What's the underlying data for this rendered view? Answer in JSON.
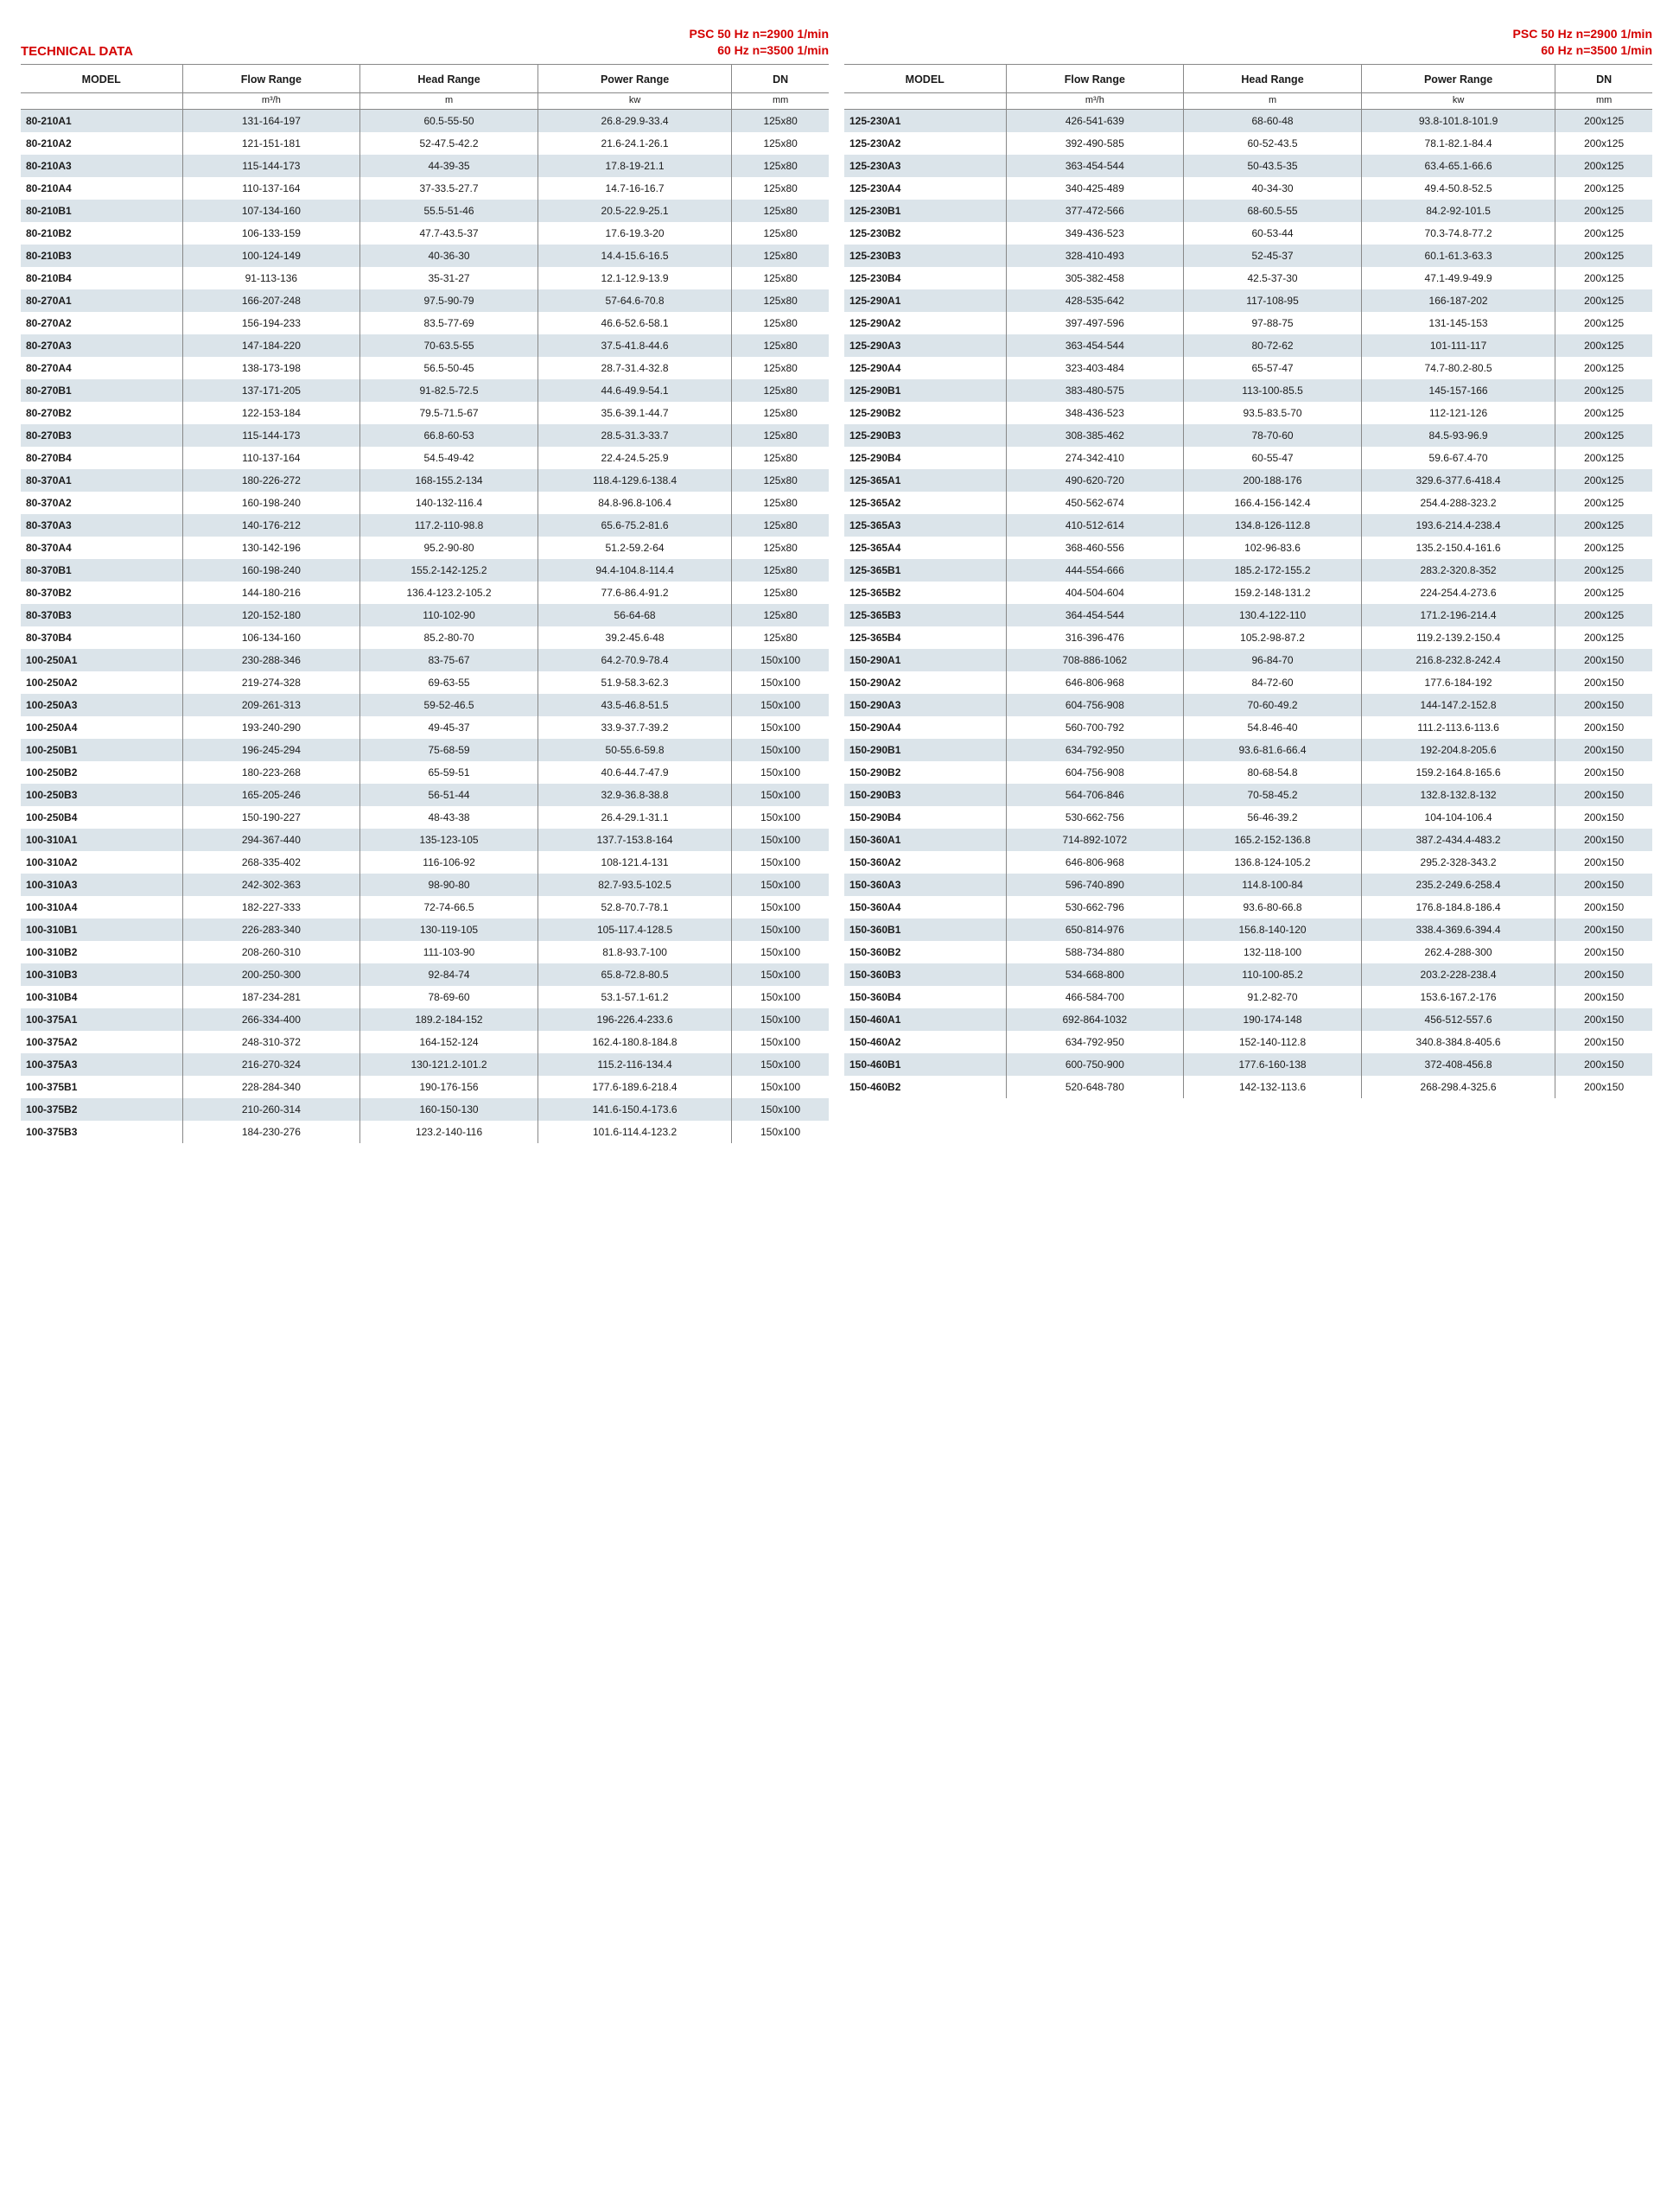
{
  "labels": {
    "technical_data": "TECHNICAL DATA",
    "psc_line1": "PSC  50 Hz  n=2900 1/min",
    "psc_line2": "60 Hz  n=3500 1/min"
  },
  "columns": [
    {
      "title": "MODEL",
      "unit": ""
    },
    {
      "title": "Flow Range",
      "unit": "m³/h"
    },
    {
      "title": "Head Range",
      "unit": "m"
    },
    {
      "title": "Power Range",
      "unit": "kw"
    },
    {
      "title": "DN",
      "unit": "mm"
    }
  ],
  "style": {
    "accent_color": "#d40000",
    "shade_row_color": "#dbe4ea",
    "border_color": "#888888",
    "font_family": "Arial, Helvetica, sans-serif",
    "header_fontsize_pt": 12.5,
    "body_fontsize_pt": 12
  },
  "left_rows": [
    {
      "model": "80-210A1",
      "flow": "131-164-197",
      "head": "60.5-55-50",
      "power": "26.8-29.9-33.4",
      "dn": "125x80",
      "shade": true
    },
    {
      "model": "80-210A2",
      "flow": "121-151-181",
      "head": "52-47.5-42.2",
      "power": "21.6-24.1-26.1",
      "dn": "125x80",
      "shade": false
    },
    {
      "model": "80-210A3",
      "flow": "115-144-173",
      "head": "44-39-35",
      "power": "17.8-19-21.1",
      "dn": "125x80",
      "shade": true
    },
    {
      "model": "80-210A4",
      "flow": "110-137-164",
      "head": "37-33.5-27.7",
      "power": "14.7-16-16.7",
      "dn": "125x80",
      "shade": false
    },
    {
      "model": "80-210B1",
      "flow": "107-134-160",
      "head": "55.5-51-46",
      "power": "20.5-22.9-25.1",
      "dn": "125x80",
      "shade": true
    },
    {
      "model": "80-210B2",
      "flow": "106-133-159",
      "head": "47.7-43.5-37",
      "power": "17.6-19.3-20",
      "dn": "125x80",
      "shade": false
    },
    {
      "model": "80-210B3",
      "flow": "100-124-149",
      "head": "40-36-30",
      "power": "14.4-15.6-16.5",
      "dn": "125x80",
      "shade": true
    },
    {
      "model": "80-210B4",
      "flow": "91-113-136",
      "head": "35-31-27",
      "power": "12.1-12.9-13.9",
      "dn": "125x80",
      "shade": false
    },
    {
      "model": "80-270A1",
      "flow": "166-207-248",
      "head": "97.5-90-79",
      "power": "57-64.6-70.8",
      "dn": "125x80",
      "shade": true
    },
    {
      "model": "80-270A2",
      "flow": "156-194-233",
      "head": "83.5-77-69",
      "power": "46.6-52.6-58.1",
      "dn": "125x80",
      "shade": false
    },
    {
      "model": "80-270A3",
      "flow": "147-184-220",
      "head": "70-63.5-55",
      "power": "37.5-41.8-44.6",
      "dn": "125x80",
      "shade": true
    },
    {
      "model": "80-270A4",
      "flow": "138-173-198",
      "head": "56.5-50-45",
      "power": "28.7-31.4-32.8",
      "dn": "125x80",
      "shade": false
    },
    {
      "model": "80-270B1",
      "flow": "137-171-205",
      "head": "91-82.5-72.5",
      "power": "44.6-49.9-54.1",
      "dn": "125x80",
      "shade": true
    },
    {
      "model": "80-270B2",
      "flow": "122-153-184",
      "head": "79.5-71.5-67",
      "power": "35.6-39.1-44.7",
      "dn": "125x80",
      "shade": false
    },
    {
      "model": "80-270B3",
      "flow": "115-144-173",
      "head": "66.8-60-53",
      "power": "28.5-31.3-33.7",
      "dn": "125x80",
      "shade": true
    },
    {
      "model": "80-270B4",
      "flow": "110-137-164",
      "head": "54.5-49-42",
      "power": "22.4-24.5-25.9",
      "dn": "125x80",
      "shade": false
    },
    {
      "model": "80-370A1",
      "flow": "180-226-272",
      "head": "168-155.2-134",
      "power": "118.4-129.6-138.4",
      "dn": "125x80",
      "shade": true
    },
    {
      "model": "80-370A2",
      "flow": "160-198-240",
      "head": "140-132-116.4",
      "power": "84.8-96.8-106.4",
      "dn": "125x80",
      "shade": false
    },
    {
      "model": "80-370A3",
      "flow": "140-176-212",
      "head": "117.2-110-98.8",
      "power": "65.6-75.2-81.6",
      "dn": "125x80",
      "shade": true
    },
    {
      "model": "80-370A4",
      "flow": "130-142-196",
      "head": "95.2-90-80",
      "power": "51.2-59.2-64",
      "dn": "125x80",
      "shade": false
    },
    {
      "model": "80-370B1",
      "flow": "160-198-240",
      "head": "155.2-142-125.2",
      "power": "94.4-104.8-114.4",
      "dn": "125x80",
      "shade": true
    },
    {
      "model": "80-370B2",
      "flow": "144-180-216",
      "head": "136.4-123.2-105.2",
      "power": "77.6-86.4-91.2",
      "dn": "125x80",
      "shade": false
    },
    {
      "model": "80-370B3",
      "flow": "120-152-180",
      "head": "110-102-90",
      "power": "56-64-68",
      "dn": "125x80",
      "shade": true
    },
    {
      "model": "80-370B4",
      "flow": "106-134-160",
      "head": "85.2-80-70",
      "power": "39.2-45.6-48",
      "dn": "125x80",
      "shade": false
    },
    {
      "model": "100-250A1",
      "flow": "230-288-346",
      "head": "83-75-67",
      "power": "64.2-70.9-78.4",
      "dn": "150x100",
      "shade": true
    },
    {
      "model": "100-250A2",
      "flow": "219-274-328",
      "head": "69-63-55",
      "power": "51.9-58.3-62.3",
      "dn": "150x100",
      "shade": false
    },
    {
      "model": "100-250A3",
      "flow": "209-261-313",
      "head": "59-52-46.5",
      "power": "43.5-46.8-51.5",
      "dn": "150x100",
      "shade": true
    },
    {
      "model": "100-250A4",
      "flow": "193-240-290",
      "head": "49-45-37",
      "power": "33.9-37.7-39.2",
      "dn": "150x100",
      "shade": false
    },
    {
      "model": "100-250B1",
      "flow": "196-245-294",
      "head": "75-68-59",
      "power": "50-55.6-59.8",
      "dn": "150x100",
      "shade": true
    },
    {
      "model": "100-250B2",
      "flow": "180-223-268",
      "head": "65-59-51",
      "power": "40.6-44.7-47.9",
      "dn": "150x100",
      "shade": false
    },
    {
      "model": "100-250B3",
      "flow": "165-205-246",
      "head": "56-51-44",
      "power": "32.9-36.8-38.8",
      "dn": "150x100",
      "shade": true
    },
    {
      "model": "100-250B4",
      "flow": "150-190-227",
      "head": "48-43-38",
      "power": "26.4-29.1-31.1",
      "dn": "150x100",
      "shade": false
    },
    {
      "model": "100-310A1",
      "flow": "294-367-440",
      "head": "135-123-105",
      "power": "137.7-153.8-164",
      "dn": "150x100",
      "shade": true
    },
    {
      "model": "100-310A2",
      "flow": "268-335-402",
      "head": "116-106-92",
      "power": "108-121.4-131",
      "dn": "150x100",
      "shade": false
    },
    {
      "model": "100-310A3",
      "flow": "242-302-363",
      "head": "98-90-80",
      "power": "82.7-93.5-102.5",
      "dn": "150x100",
      "shade": true
    },
    {
      "model": "100-310A4",
      "flow": "182-227-333",
      "head": "72-74-66.5",
      "power": "52.8-70.7-78.1",
      "dn": "150x100",
      "shade": false
    },
    {
      "model": "100-310B1",
      "flow": "226-283-340",
      "head": "130-119-105",
      "power": "105-117.4-128.5",
      "dn": "150x100",
      "shade": true
    },
    {
      "model": "100-310B2",
      "flow": "208-260-310",
      "head": "111-103-90",
      "power": "81.8-93.7-100",
      "dn": "150x100",
      "shade": false
    },
    {
      "model": "100-310B3",
      "flow": "200-250-300",
      "head": "92-84-74",
      "power": "65.8-72.8-80.5",
      "dn": "150x100",
      "shade": true
    },
    {
      "model": "100-310B4",
      "flow": "187-234-281",
      "head": "78-69-60",
      "power": "53.1-57.1-61.2",
      "dn": "150x100",
      "shade": false
    },
    {
      "model": "100-375A1",
      "flow": "266-334-400",
      "head": "189.2-184-152",
      "power": "196-226.4-233.6",
      "dn": "150x100",
      "shade": true
    },
    {
      "model": "100-375A2",
      "flow": "248-310-372",
      "head": "164-152-124",
      "power": "162.4-180.8-184.8",
      "dn": "150x100",
      "shade": false
    },
    {
      "model": "100-375A3",
      "flow": "216-270-324",
      "head": "130-121.2-101.2",
      "power": "115.2-116-134.4",
      "dn": "150x100",
      "shade": true
    },
    {
      "model": "100-375B1",
      "flow": "228-284-340",
      "head": "190-176-156",
      "power": "177.6-189.6-218.4",
      "dn": "150x100",
      "shade": false
    },
    {
      "model": "100-375B2",
      "flow": "210-260-314",
      "head": "160-150-130",
      "power": "141.6-150.4-173.6",
      "dn": "150x100",
      "shade": true
    },
    {
      "model": "100-375B3",
      "flow": "184-230-276",
      "head": "123.2-140-116",
      "power": "101.6-114.4-123.2",
      "dn": "150x100",
      "shade": false
    }
  ],
  "right_rows": [
    {
      "model": "125-230A1",
      "flow": "426-541-639",
      "head": "68-60-48",
      "power": "93.8-101.8-101.9",
      "dn": "200x125",
      "shade": true
    },
    {
      "model": "125-230A2",
      "flow": "392-490-585",
      "head": "60-52-43.5",
      "power": "78.1-82.1-84.4",
      "dn": "200x125",
      "shade": false
    },
    {
      "model": "125-230A3",
      "flow": "363-454-544",
      "head": "50-43.5-35",
      "power": "63.4-65.1-66.6",
      "dn": "200x125",
      "shade": true
    },
    {
      "model": "125-230A4",
      "flow": "340-425-489",
      "head": "40-34-30",
      "power": "49.4-50.8-52.5",
      "dn": "200x125",
      "shade": false
    },
    {
      "model": "125-230B1",
      "flow": "377-472-566",
      "head": "68-60.5-55",
      "power": "84.2-92-101.5",
      "dn": "200x125",
      "shade": true
    },
    {
      "model": "125-230B2",
      "flow": "349-436-523",
      "head": "60-53-44",
      "power": "70.3-74.8-77.2",
      "dn": "200x125",
      "shade": false
    },
    {
      "model": "125-230B3",
      "flow": "328-410-493",
      "head": "52-45-37",
      "power": "60.1-61.3-63.3",
      "dn": "200x125",
      "shade": true
    },
    {
      "model": "125-230B4",
      "flow": "305-382-458",
      "head": "42.5-37-30",
      "power": "47.1-49.9-49.9",
      "dn": "200x125",
      "shade": false
    },
    {
      "model": "125-290A1",
      "flow": "428-535-642",
      "head": "117-108-95",
      "power": "166-187-202",
      "dn": "200x125",
      "shade": true
    },
    {
      "model": "125-290A2",
      "flow": "397-497-596",
      "head": "97-88-75",
      "power": "131-145-153",
      "dn": "200x125",
      "shade": false
    },
    {
      "model": "125-290A3",
      "flow": "363-454-544",
      "head": "80-72-62",
      "power": "101-111-117",
      "dn": "200x125",
      "shade": true
    },
    {
      "model": "125-290A4",
      "flow": "323-403-484",
      "head": "65-57-47",
      "power": "74.7-80.2-80.5",
      "dn": "200x125",
      "shade": false
    },
    {
      "model": "125-290B1",
      "flow": "383-480-575",
      "head": "113-100-85.5",
      "power": "145-157-166",
      "dn": "200x125",
      "shade": true
    },
    {
      "model": "125-290B2",
      "flow": "348-436-523",
      "head": "93.5-83.5-70",
      "power": "112-121-126",
      "dn": "200x125",
      "shade": false
    },
    {
      "model": "125-290B3",
      "flow": "308-385-462",
      "head": "78-70-60",
      "power": "84.5-93-96.9",
      "dn": "200x125",
      "shade": true
    },
    {
      "model": "125-290B4",
      "flow": "274-342-410",
      "head": "60-55-47",
      "power": "59.6-67.4-70",
      "dn": "200x125",
      "shade": false
    },
    {
      "model": "125-365A1",
      "flow": "490-620-720",
      "head": "200-188-176",
      "power": "329.6-377.6-418.4",
      "dn": "200x125",
      "shade": true
    },
    {
      "model": "125-365A2",
      "flow": "450-562-674",
      "head": "166.4-156-142.4",
      "power": "254.4-288-323.2",
      "dn": "200x125",
      "shade": false
    },
    {
      "model": "125-365A3",
      "flow": "410-512-614",
      "head": "134.8-126-112.8",
      "power": "193.6-214.4-238.4",
      "dn": "200x125",
      "shade": true
    },
    {
      "model": "125-365A4",
      "flow": "368-460-556",
      "head": "102-96-83.6",
      "power": "135.2-150.4-161.6",
      "dn": "200x125",
      "shade": false
    },
    {
      "model": "125-365B1",
      "flow": "444-554-666",
      "head": "185.2-172-155.2",
      "power": "283.2-320.8-352",
      "dn": "200x125",
      "shade": true
    },
    {
      "model": "125-365B2",
      "flow": "404-504-604",
      "head": "159.2-148-131.2",
      "power": "224-254.4-273.6",
      "dn": "200x125",
      "shade": false
    },
    {
      "model": "125-365B3",
      "flow": "364-454-544",
      "head": "130.4-122-110",
      "power": "171.2-196-214.4",
      "dn": "200x125",
      "shade": true
    },
    {
      "model": "125-365B4",
      "flow": "316-396-476",
      "head": "105.2-98-87.2",
      "power": "119.2-139.2-150.4",
      "dn": "200x125",
      "shade": false
    },
    {
      "model": "150-290A1",
      "flow": "708-886-1062",
      "head": "96-84-70",
      "power": "216.8-232.8-242.4",
      "dn": "200x150",
      "shade": true
    },
    {
      "model": "150-290A2",
      "flow": "646-806-968",
      "head": "84-72-60",
      "power": "177.6-184-192",
      "dn": "200x150",
      "shade": false
    },
    {
      "model": "150-290A3",
      "flow": "604-756-908",
      "head": "70-60-49.2",
      "power": "144-147.2-152.8",
      "dn": "200x150",
      "shade": true
    },
    {
      "model": "150-290A4",
      "flow": "560-700-792",
      "head": "54.8-46-40",
      "power": "111.2-113.6-113.6",
      "dn": "200x150",
      "shade": false
    },
    {
      "model": "150-290B1",
      "flow": "634-792-950",
      "head": "93.6-81.6-66.4",
      "power": "192-204.8-205.6",
      "dn": "200x150",
      "shade": true
    },
    {
      "model": "150-290B2",
      "flow": "604-756-908",
      "head": "80-68-54.8",
      "power": "159.2-164.8-165.6",
      "dn": "200x150",
      "shade": false
    },
    {
      "model": "150-290B3",
      "flow": "564-706-846",
      "head": "70-58-45.2",
      "power": "132.8-132.8-132",
      "dn": "200x150",
      "shade": true
    },
    {
      "model": "150-290B4",
      "flow": "530-662-756",
      "head": "56-46-39.2",
      "power": "104-104-106.4",
      "dn": "200x150",
      "shade": false
    },
    {
      "model": "150-360A1",
      "flow": "714-892-1072",
      "head": "165.2-152-136.8",
      "power": "387.2-434.4-483.2",
      "dn": "200x150",
      "shade": true
    },
    {
      "model": "150-360A2",
      "flow": "646-806-968",
      "head": "136.8-124-105.2",
      "power": "295.2-328-343.2",
      "dn": "200x150",
      "shade": false
    },
    {
      "model": "150-360A3",
      "flow": "596-740-890",
      "head": "114.8-100-84",
      "power": "235.2-249.6-258.4",
      "dn": "200x150",
      "shade": true
    },
    {
      "model": "150-360A4",
      "flow": "530-662-796",
      "head": "93.6-80-66.8",
      "power": "176.8-184.8-186.4",
      "dn": "200x150",
      "shade": false
    },
    {
      "model": "150-360B1",
      "flow": "650-814-976",
      "head": "156.8-140-120",
      "power": "338.4-369.6-394.4",
      "dn": "200x150",
      "shade": true
    },
    {
      "model": "150-360B2",
      "flow": "588-734-880",
      "head": "132-118-100",
      "power": "262.4-288-300",
      "dn": "200x150",
      "shade": false
    },
    {
      "model": "150-360B3",
      "flow": "534-668-800",
      "head": "110-100-85.2",
      "power": "203.2-228-238.4",
      "dn": "200x150",
      "shade": true
    },
    {
      "model": "150-360B4",
      "flow": "466-584-700",
      "head": "91.2-82-70",
      "power": "153.6-167.2-176",
      "dn": "200x150",
      "shade": false
    },
    {
      "model": "150-460A1",
      "flow": "692-864-1032",
      "head": "190-174-148",
      "power": "456-512-557.6",
      "dn": "200x150",
      "shade": true
    },
    {
      "model": "150-460A2",
      "flow": "634-792-950",
      "head": "152-140-112.8",
      "power": "340.8-384.8-405.6",
      "dn": "200x150",
      "shade": false
    },
    {
      "model": "150-460B1",
      "flow": "600-750-900",
      "head": "177.6-160-138",
      "power": "372-408-456.8",
      "dn": "200x150",
      "shade": true
    },
    {
      "model": "150-460B2",
      "flow": "520-648-780",
      "head": "142-132-113.6",
      "power": "268-298.4-325.6",
      "dn": "200x150",
      "shade": false
    }
  ]
}
